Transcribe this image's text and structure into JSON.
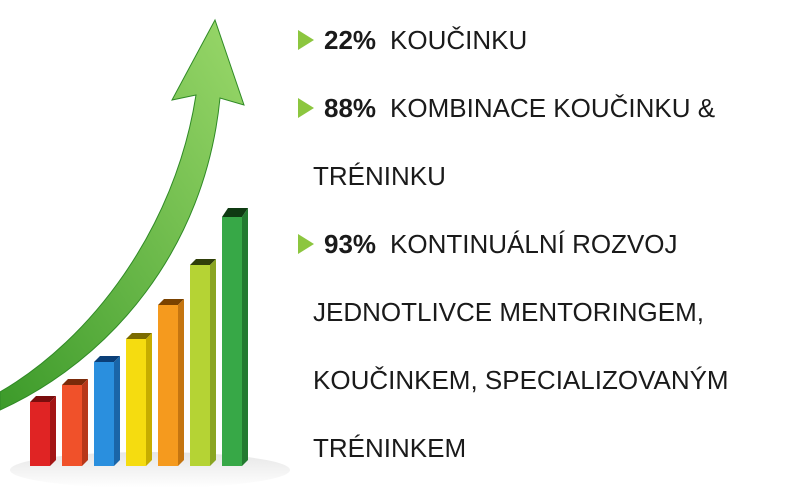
{
  "items": [
    {
      "percent": "22%",
      "text": "KOUČINKU"
    },
    {
      "percent": "88%",
      "text": "KOMBINACE KOUČINKU & TRÉNINKU"
    },
    {
      "percent": "93%",
      "text": "KONTINUÁLNÍ ROZVOJ JEDNOTLIVCE MENTORINGEM, KOUČINKEM, SPECIALIZOVANÝM TRÉNINKEM"
    }
  ]
}
